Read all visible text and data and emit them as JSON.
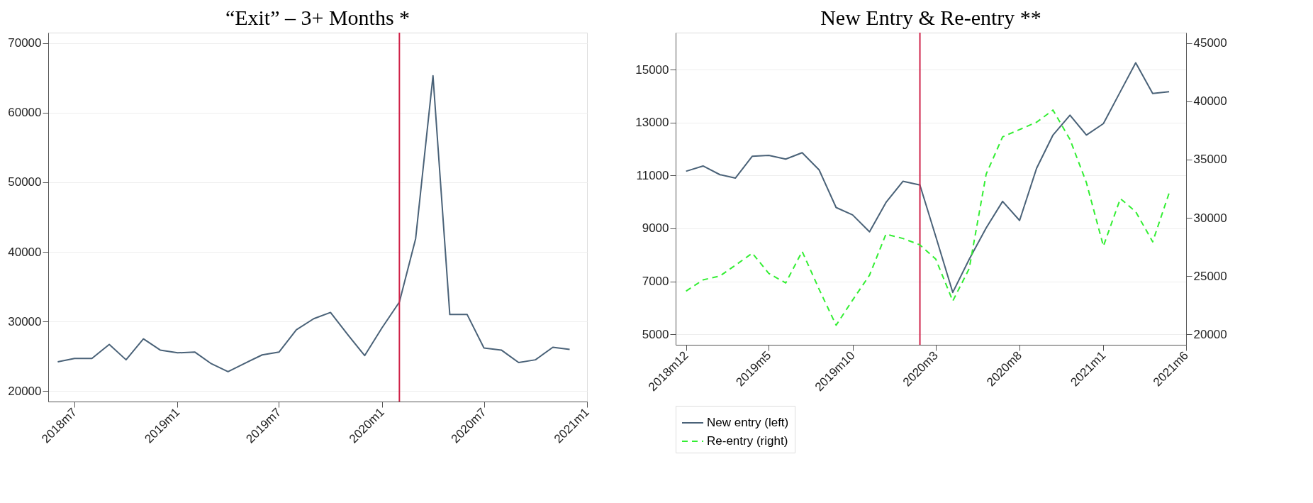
{
  "chart_data": [
    {
      "type": "line",
      "title": "“Exit” – 3+ Months *",
      "x": [
        "2018-06",
        "2018-07",
        "2018-08",
        "2018-09",
        "2018-10",
        "2018-11",
        "2018-12",
        "2019-01",
        "2019-02",
        "2019-03",
        "2019-04",
        "2019-05",
        "2019-06",
        "2019-07",
        "2019-08",
        "2019-09",
        "2019-10",
        "2019-11",
        "2019-12",
        "2020-01",
        "2020-02",
        "2020-03",
        "2020-04",
        "2020-05",
        "2020-06",
        "2020-07",
        "2020-08",
        "2020-09",
        "2020-10",
        "2020-11",
        "2020-12"
      ],
      "series": [
        {
          "color": "#4a6278",
          "line_style": "solid",
          "values": [
            24200,
            24700,
            24700,
            26700,
            24500,
            27500,
            25900,
            25500,
            25600,
            24000,
            22800,
            24000,
            25200,
            25600,
            28800,
            30400,
            31300,
            28100,
            25100,
            29100,
            32800,
            41900,
            65300,
            31000,
            31000,
            26200,
            25900,
            24100,
            24500,
            26300,
            26000
          ]
        }
      ],
      "xlim": [
        "2018-05-15",
        "2021-01-01"
      ],
      "xticks": [
        {
          "value": "2018-07",
          "label": "2018m7"
        },
        {
          "value": "2019-01",
          "label": "2019m1"
        },
        {
          "value": "2019-07",
          "label": "2019m7"
        },
        {
          "value": "2020-01",
          "label": "2020m1"
        },
        {
          "value": "2020-07",
          "label": "2020m7"
        },
        {
          "value": "2021-01",
          "label": "2021m1"
        }
      ],
      "ylim": [
        18500,
        71500
      ],
      "yticks": [
        20000,
        30000,
        40000,
        50000,
        60000,
        70000
      ],
      "ref_lines": [
        {
          "axis": "x",
          "value": "2020-02",
          "color": "#d0234a"
        }
      ],
      "grid": "y",
      "legend": false
    },
    {
      "type": "line",
      "title": "New Entry & Re-entry **",
      "x": [
        "2018-12",
        "2019-01",
        "2019-02",
        "2019-03",
        "2019-04",
        "2019-05",
        "2019-06",
        "2019-07",
        "2019-08",
        "2019-09",
        "2019-10",
        "2019-11",
        "2019-12",
        "2020-01",
        "2020-02",
        "2020-03",
        "2020-04",
        "2020-05",
        "2020-06",
        "2020-07",
        "2020-08",
        "2020-09",
        "2020-10",
        "2020-11",
        "2020-12",
        "2021-01",
        "2021-02",
        "2021-03",
        "2021-04",
        "2021-05"
      ],
      "series": [
        {
          "name": "New entry (left)",
          "color": "#4a6278",
          "line_style": "solid",
          "values": [
            11160,
            11360,
            11030,
            10900,
            11730,
            11760,
            11620,
            11860,
            11210,
            9790,
            9510,
            8870,
            9980,
            10780,
            10640,
            8690,
            6580,
            7830,
            9020,
            10020,
            9300,
            11270,
            12530,
            13280,
            12530,
            12960,
            14170,
            15260,
            14100,
            14170
          ]
        },
        {
          "name": "Re-entry (right)",
          "color": "#33ee33",
          "line_style": "dashed",
          "axis": "y2",
          "values": [
            23710,
            24670,
            25010,
            25930,
            26970,
            25230,
            24410,
            27120,
            23860,
            20780,
            22930,
            25080,
            28600,
            28230,
            27680,
            26450,
            22860,
            25640,
            33760,
            36950,
            37580,
            38210,
            39250,
            36730,
            33020,
            27570,
            31650,
            30530,
            27940,
            32130
          ]
        }
      ],
      "xlim": [
        "2018-11-12",
        "2021-06-01"
      ],
      "xticks": [
        {
          "value": "2018-12",
          "label": "2018m12"
        },
        {
          "value": "2019-05",
          "label": "2019m5"
        },
        {
          "value": "2019-10",
          "label": "2019m10"
        },
        {
          "value": "2020-03",
          "label": "2020m3"
        },
        {
          "value": "2020-08",
          "label": "2020m8"
        },
        {
          "value": "2021-01",
          "label": "2021m1"
        },
        {
          "value": "2021-06",
          "label": "2021m6"
        }
      ],
      "ylim": [
        4600,
        16400
      ],
      "yticks": [
        5000,
        7000,
        9000,
        11000,
        13000,
        15000
      ],
      "y2lim": [
        19100,
        45900
      ],
      "y2ticks": [
        20000,
        25000,
        30000,
        35000,
        40000,
        45000
      ],
      "ref_lines": [
        {
          "axis": "x",
          "value": "2020-02",
          "color": "#d0234a"
        }
      ],
      "grid": "y",
      "legend": "bottom"
    }
  ]
}
